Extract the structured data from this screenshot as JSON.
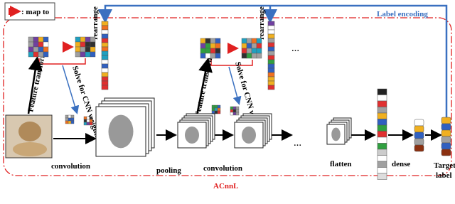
{
  "legend": {
    "label": ": map to"
  },
  "top": {
    "label_encoding": "Label encoding",
    "rearrange_1": "rearrange",
    "rearrange_2": "rearrange",
    "ellipsis": "…"
  },
  "left": {
    "feature_transform_1": "Feature transform",
    "solve_1": "Solve for CNN weights",
    "feature_transform_2": "Feature transform",
    "solve_2": "Solve for CNN weights"
  },
  "bottom": {
    "convolution_1": "convolution",
    "pooling": "pooling",
    "convolution_2": "convolution",
    "ellipsis": "…",
    "flatten": "flatten",
    "dense": "dense",
    "target_label": [
      "Target",
      "label"
    ],
    "framework": "ACnnL"
  }
}
